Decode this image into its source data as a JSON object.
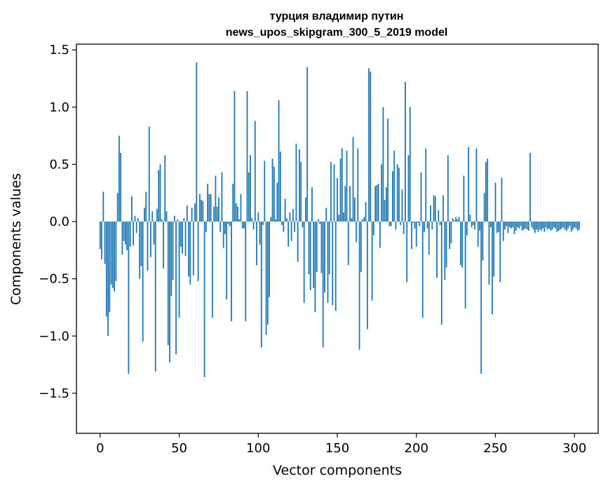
{
  "chart_data": {
    "type": "bar",
    "title_line1": "турция владимир путин",
    "title_line2": "news_upos_skipgram_300_5_2019 model",
    "xlabel": "Vector components",
    "ylabel": "Components values",
    "xlim": [
      -15,
      315
    ],
    "ylim": [
      -1.85,
      1.55
    ],
    "xticks": [
      0,
      50,
      100,
      150,
      200,
      250,
      300
    ],
    "xtick_labels": [
      "0",
      "50",
      "100",
      "150",
      "200",
      "250",
      "300"
    ],
    "yticks": [
      1.5,
      1.0,
      0.5,
      0.0,
      -0.5,
      -1.0,
      -1.5
    ],
    "ytick_labels": [
      "1.5",
      "1.0",
      "0.5",
      "0.0",
      "−0.5",
      "−1.0",
      "−1.5"
    ],
    "bar_color": "#1f77b4",
    "values": [
      -0.24,
      -0.33,
      0.26,
      -0.37,
      -0.83,
      -1.0,
      -0.79,
      -0.55,
      -0.58,
      -0.61,
      -0.52,
      0.25,
      0.75,
      0.6,
      -0.29,
      -0.17,
      -0.2,
      -0.25,
      -1.33,
      -0.22,
      0.22,
      -0.21,
      0.05,
      -0.1,
      0.03,
      -0.5,
      -0.39,
      -1.05,
      0.12,
      0.26,
      -0.43,
      0.83,
      -0.31,
      0.09,
      -0.2,
      -1.31,
      0.11,
      0.45,
      0.5,
      0.02,
      -0.41,
      0.58,
      0.09,
      -1.08,
      -1.23,
      -0.65,
      -0.51,
      0.05,
      -1.16,
      0.02,
      -0.84,
      -0.22,
      -0.28,
      0.03,
      -0.3,
      0.14,
      -0.48,
      -0.55,
      0.12,
      -0.47,
      0.16,
      1.39,
      -0.52,
      0.24,
      0.19,
      0.18,
      -1.36,
      -0.09,
      0.33,
      0.24,
      0.24,
      -0.84,
      0.13,
      0.4,
      0.13,
      0.21,
      -0.09,
      0.43,
      -0.23,
      -0.11,
      -0.68,
      -0.02,
      -0.04,
      -0.87,
      0.33,
      1.14,
      0.16,
      0.13,
      0.02,
      0.24,
      -0.06,
      -0.06,
      -0.87,
      1.14,
      0.43,
      0.58,
      0.03,
      -0.07,
      0.88,
      -0.38,
      0.08,
      -0.2,
      -1.1,
      -0.03,
      0.53,
      -0.99,
      -0.9,
      -0.66,
      0.04,
      0.55,
      0.48,
      0.02,
      0.34,
      1.06,
      0.61,
      -0.03,
      -0.09,
      0.2,
      0.03,
      -0.22,
      0.08,
      -0.17,
      0.11,
      -0.09,
      0.68,
      -0.35,
      0.63,
      0.52,
      -0.05,
      -0.71,
      0.21,
      1.35,
      -0.46,
      -0.6,
      0.3,
      -0.58,
      -0.79,
      -0.44,
      0.02,
      -0.02,
      -0.45,
      -1.1,
      -0.62,
      0.12,
      -0.71,
      -0.46,
      0.52,
      -0.73,
      0.5,
      -0.78,
      0.38,
      0.06,
      0.55,
      0.64,
      0.08,
      0.31,
      0.62,
      -0.38,
      0.31,
      0.03,
      0.74,
      0.21,
      -0.18,
      0.64,
      -1.12,
      -0.44,
      0.02,
      0.04,
      0.17,
      -0.94,
      1.34,
      1.31,
      -0.69,
      -0.12,
      0.31,
      0.32,
      0.33,
      -0.23,
      0.5,
      1.0,
      0.19,
      0.3,
      0.9,
      -0.04,
      -0.04,
      0.44,
      0.62,
      -0.07,
      0.5,
      0.47,
      -0.03,
      0.28,
      -0.11,
      1.22,
      -0.53,
      0.58,
      1.0,
      -0.24,
      -0.01,
      -0.06,
      -0.22,
      -0.01,
      -0.04,
      0.43,
      -0.84,
      -0.09,
      0.64,
      -0.06,
      -0.29,
      0.14,
      -0.07,
      0.23,
      0.22,
      -0.49,
      0.1,
      -0.03,
      -0.9,
      0.23,
      -0.51,
      -0.4,
      0.58,
      -0.24,
      -0.19,
      0.03,
      0.01,
      0.04,
      0.02,
      0.04,
      -0.38,
      -0.4,
      0.4,
      -0.76,
      -0.12,
      0.65,
      0.06,
      -0.05,
      -0.03,
      -0.07,
      0.64,
      -0.22,
      -0.08,
      -1.33,
      -0.34,
      0.25,
      0.52,
      0.55,
      -0.55,
      -0.05,
      -0.81,
      -0.48,
      0.34,
      -0.1,
      -0.09,
      -0.53,
      0.38,
      -0.17,
      -0.07,
      -0.04,
      -0.1,
      -0.05,
      -0.06,
      -0.05,
      -0.11,
      -0.08,
      -0.05,
      -0.06,
      -0.04,
      -0.08,
      -0.07,
      -0.06,
      -0.07,
      -0.08,
      0.6,
      -0.05,
      -0.07,
      -0.1,
      -0.07,
      -0.09,
      -0.07,
      -0.08,
      -0.06,
      -0.09,
      -0.05,
      -0.07,
      -0.06,
      -0.08,
      -0.07,
      -0.05,
      -0.06,
      -0.09,
      -0.08,
      -0.07,
      -0.06,
      -0.05,
      -0.07,
      -0.08,
      -0.06,
      -0.04,
      -0.09,
      -0.07,
      -0.05,
      -0.06,
      -0.08,
      -0.07
    ]
  }
}
